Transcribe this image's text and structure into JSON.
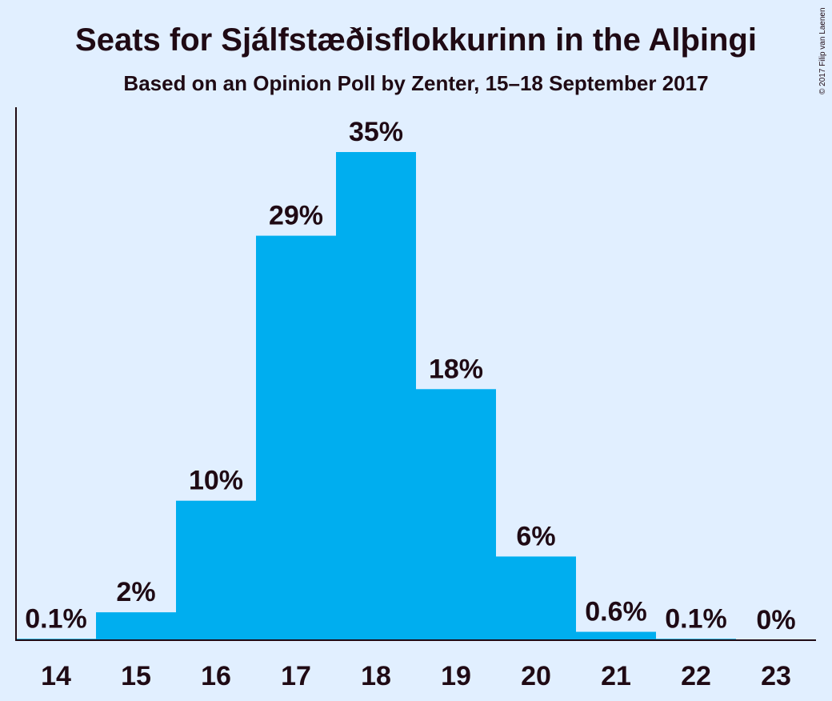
{
  "chart_data": {
    "type": "bar",
    "title": "Seats for Sjálfstæðisflokkurinn in the Alþingi",
    "subtitle": "Based on an Opinion Poll by Zenter, 15–18 September 2017",
    "categories": [
      "14",
      "15",
      "16",
      "17",
      "18",
      "19",
      "20",
      "21",
      "22",
      "23"
    ],
    "values": [
      0.1,
      2,
      10,
      29,
      35,
      18,
      6,
      0.6,
      0.1,
      0
    ],
    "value_labels": [
      "0.1%",
      "2%",
      "10%",
      "29%",
      "35%",
      "18%",
      "6%",
      "0.6%",
      "0.1%",
      "0%"
    ],
    "ylim": [
      0,
      35
    ],
    "grid": false,
    "legend": "none",
    "colors": {
      "bar": "#00aeef",
      "background": "#e1efff",
      "text": "#1f0a14",
      "axis": "#1f0a14"
    }
  },
  "copyright": "© 2017 Filip van Laenen"
}
